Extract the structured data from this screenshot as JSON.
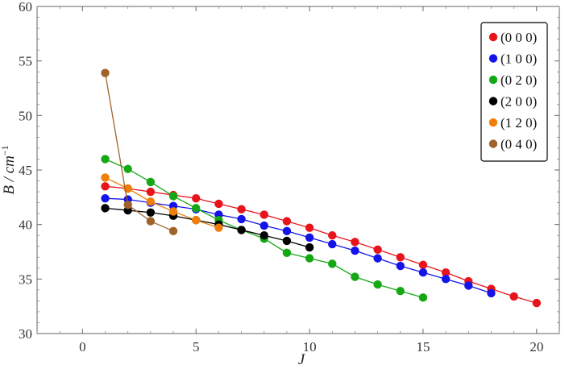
{
  "chart_data": {
    "type": "line",
    "xlabel": "J",
    "ylabel": "B / cm",
    "ylabel_sup": "−1",
    "xlim": [
      -2,
      21
    ],
    "ylim": [
      30,
      60
    ],
    "xticks": [
      0,
      5,
      10,
      15,
      20
    ],
    "yticks": [
      30,
      35,
      40,
      45,
      50,
      55,
      60
    ],
    "grid": false,
    "legend_position": "top-right",
    "series": [
      {
        "name": "(0 0 0)",
        "color": "#e8141c",
        "x": [
          1,
          2,
          3,
          4,
          5,
          6,
          7,
          8,
          9,
          10,
          11,
          12,
          13,
          14,
          15,
          16,
          17,
          18,
          19,
          20
        ],
        "y": [
          43.5,
          43.3,
          43.0,
          42.7,
          42.4,
          41.9,
          41.4,
          40.9,
          40.3,
          39.7,
          39.0,
          38.4,
          37.7,
          37.0,
          36.3,
          35.6,
          34.8,
          34.1,
          33.4,
          32.8
        ]
      },
      {
        "name": "(1 0 0)",
        "color": "#1414e8",
        "x": [
          1,
          2,
          3,
          4,
          5,
          6,
          7,
          8,
          9,
          10,
          11,
          12,
          13,
          14,
          15,
          16,
          17,
          18
        ],
        "y": [
          42.4,
          42.3,
          42.0,
          41.7,
          41.4,
          40.9,
          40.5,
          39.9,
          39.4,
          38.8,
          38.2,
          37.6,
          36.9,
          36.2,
          35.6,
          35.0,
          34.4,
          33.7
        ]
      },
      {
        "name": "(0 2 0)",
        "color": "#14a814",
        "x": [
          1,
          2,
          3,
          4,
          5,
          6,
          7,
          8,
          9,
          10,
          11,
          12,
          13,
          14,
          15
        ],
        "y": [
          46.0,
          45.1,
          43.9,
          42.6,
          41.5,
          40.4,
          39.5,
          38.7,
          37.4,
          36.9,
          36.4,
          35.2,
          34.5,
          33.9,
          33.3
        ]
      },
      {
        "name": "(2 0 0)",
        "color": "#000000",
        "x": [
          1,
          2,
          3,
          4,
          5,
          6,
          7,
          8,
          9,
          10
        ],
        "y": [
          41.5,
          41.3,
          41.1,
          40.8,
          40.4,
          40.0,
          39.5,
          39.0,
          38.5,
          37.9
        ]
      },
      {
        "name": "(1 2 0)",
        "color": "#f07f0a",
        "x": [
          1,
          2,
          3,
          4,
          5,
          6
        ],
        "y": [
          44.3,
          43.3,
          42.1,
          41.2,
          40.4,
          39.7
        ]
      },
      {
        "name": "(0 4 0)",
        "color": "#a0622a",
        "x": [
          1,
          2,
          3,
          4
        ],
        "y": [
          53.9,
          41.8,
          40.3,
          39.4
        ]
      }
    ]
  }
}
